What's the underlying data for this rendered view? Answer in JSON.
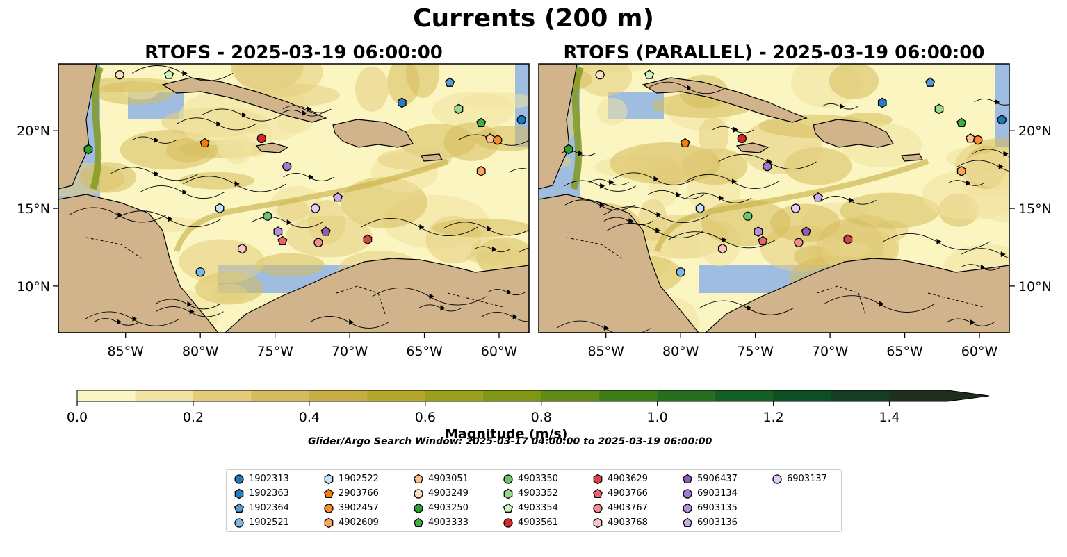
{
  "title": "Currents (200 m)",
  "colorbar": {
    "label": "Magnitude (m/s)",
    "ticks": [
      "0.0",
      "0.2",
      "0.4",
      "0.6",
      "0.8",
      "1.0",
      "1.2",
      "1.4"
    ],
    "levels": [
      0.0,
      0.1,
      0.2,
      0.3,
      0.4,
      0.5,
      0.6,
      0.7,
      0.8,
      0.9,
      1.0,
      1.1,
      1.2,
      1.3,
      1.4,
      1.5
    ],
    "colors": [
      "#fbf5c1",
      "#f0e2a0",
      "#e3cd7d",
      "#d5bb5c",
      "#c7ad43",
      "#b3a72e",
      "#9aa01e",
      "#7f9715",
      "#5f8b16",
      "#3f7d19",
      "#25701e",
      "#135f24",
      "#0c4f22",
      "#163e22",
      "#1e2f1c"
    ],
    "extend": "max"
  },
  "search_window": "Glider/Argo Search Window: 2025-03-17 04:00:00 to 2025-03-19 06:00:00",
  "chart_data": [
    {
      "type": "map",
      "title": "RTOFS - 2025-03-19 06:00:00",
      "xlim": [
        -89.5,
        -58
      ],
      "ylim": [
        7,
        24.3
      ],
      "xticks": [
        {
          "value": -85,
          "label": "85°W"
        },
        {
          "value": -80,
          "label": "80°W"
        },
        {
          "value": -75,
          "label": "75°W"
        },
        {
          "value": -70,
          "label": "70°W"
        },
        {
          "value": -65,
          "label": "65°W"
        },
        {
          "value": -60,
          "label": "60°W"
        }
      ],
      "yticks": [
        {
          "value": 10,
          "label": "10°N"
        },
        {
          "value": 15,
          "label": "15°N"
        },
        {
          "value": 20,
          "label": "20°N"
        }
      ],
      "ytick_side": "left",
      "floats": [
        {
          "id": "4903249",
          "lon": -85.4,
          "lat": 23.6
        },
        {
          "id": "4903354",
          "lon": -82.1,
          "lat": 23.6
        },
        {
          "id": "1902364",
          "lon": -63.3,
          "lat": 23.1
        },
        {
          "id": "1902363",
          "lon": -66.5,
          "lat": 21.8
        },
        {
          "id": "4903352",
          "lon": -62.7,
          "lat": 21.4
        },
        {
          "id": "4903333",
          "lon": -61.2,
          "lat": 20.5
        },
        {
          "id": "1902313",
          "lon": -58.5,
          "lat": 20.7
        },
        {
          "id": "4903250",
          "lon": -87.5,
          "lat": 18.8
        },
        {
          "id": "2903766",
          "lon": -79.7,
          "lat": 19.2
        },
        {
          "id": "4903561",
          "lon": -75.9,
          "lat": 19.5
        },
        {
          "id": "4903051",
          "lon": -60.6,
          "lat": 19.5
        },
        {
          "id": "3902457",
          "lon": -60.1,
          "lat": 19.4
        },
        {
          "id": "6903134",
          "lon": -74.2,
          "lat": 17.7
        },
        {
          "id": "4902609",
          "lon": -61.2,
          "lat": 17.4
        },
        {
          "id": "1902522",
          "lon": -78.7,
          "lat": 15.0
        },
        {
          "id": "6903137",
          "lon": -72.3,
          "lat": 15.0
        },
        {
          "id": "6903136",
          "lon": -70.8,
          "lat": 15.7
        },
        {
          "id": "4903350",
          "lon": -75.5,
          "lat": 14.5
        },
        {
          "id": "6903135",
          "lon": -74.8,
          "lat": 13.5
        },
        {
          "id": "5906437",
          "lon": -71.6,
          "lat": 13.5
        },
        {
          "id": "4903766",
          "lon": -74.5,
          "lat": 12.9
        },
        {
          "id": "4903767",
          "lon": -72.1,
          "lat": 12.8
        },
        {
          "id": "4903629",
          "lon": -68.8,
          "lat": 13.0
        },
        {
          "id": "4903768",
          "lon": -77.2,
          "lat": 12.4
        },
        {
          "id": "1902521",
          "lon": -80.0,
          "lat": 10.9
        }
      ]
    },
    {
      "type": "map",
      "title": "RTOFS (PARALLEL) - 2025-03-19 06:00:00",
      "xlim": [
        -89.5,
        -58
      ],
      "ylim": [
        7,
        24.3
      ],
      "xticks": [
        {
          "value": -85,
          "label": "85°W"
        },
        {
          "value": -80,
          "label": "80°W"
        },
        {
          "value": -75,
          "label": "75°W"
        },
        {
          "value": -70,
          "label": "70°W"
        },
        {
          "value": -65,
          "label": "65°W"
        },
        {
          "value": -60,
          "label": "60°W"
        }
      ],
      "yticks": [
        {
          "value": 10,
          "label": "10°N"
        },
        {
          "value": 15,
          "label": "15°N"
        },
        {
          "value": 20,
          "label": "20°N"
        }
      ],
      "ytick_side": "right",
      "floats": [
        {
          "id": "4903249",
          "lon": -85.4,
          "lat": 23.6
        },
        {
          "id": "4903354",
          "lon": -82.1,
          "lat": 23.6
        },
        {
          "id": "1902364",
          "lon": -63.3,
          "lat": 23.1
        },
        {
          "id": "1902363",
          "lon": -66.5,
          "lat": 21.8
        },
        {
          "id": "4903352",
          "lon": -62.7,
          "lat": 21.4
        },
        {
          "id": "4903333",
          "lon": -61.2,
          "lat": 20.5
        },
        {
          "id": "1902313",
          "lon": -58.5,
          "lat": 20.7
        },
        {
          "id": "4903250",
          "lon": -87.5,
          "lat": 18.8
        },
        {
          "id": "2903766",
          "lon": -79.7,
          "lat": 19.2
        },
        {
          "id": "4903561",
          "lon": -75.9,
          "lat": 19.5
        },
        {
          "id": "4903051",
          "lon": -60.6,
          "lat": 19.5
        },
        {
          "id": "3902457",
          "lon": -60.1,
          "lat": 19.4
        },
        {
          "id": "6903134",
          "lon": -74.2,
          "lat": 17.7
        },
        {
          "id": "4902609",
          "lon": -61.2,
          "lat": 17.4
        },
        {
          "id": "1902522",
          "lon": -78.7,
          "lat": 15.0
        },
        {
          "id": "6903137",
          "lon": -72.3,
          "lat": 15.0
        },
        {
          "id": "6903136",
          "lon": -70.8,
          "lat": 15.7
        },
        {
          "id": "4903350",
          "lon": -75.5,
          "lat": 14.5
        },
        {
          "id": "6903135",
          "lon": -74.8,
          "lat": 13.5
        },
        {
          "id": "5906437",
          "lon": -71.6,
          "lat": 13.5
        },
        {
          "id": "4903766",
          "lon": -74.5,
          "lat": 12.9
        },
        {
          "id": "4903767",
          "lon": -72.1,
          "lat": 12.8
        },
        {
          "id": "4903629",
          "lon": -68.8,
          "lat": 13.0
        },
        {
          "id": "4903768",
          "lon": -77.2,
          "lat": 12.4
        },
        {
          "id": "1902521",
          "lon": -80.0,
          "lat": 10.9
        }
      ]
    }
  ],
  "legend": [
    {
      "id": "1902313",
      "marker": "circle",
      "color": "#1f77b4"
    },
    {
      "id": "1902363",
      "marker": "hexagon",
      "color": "#2b7bba"
    },
    {
      "id": "1902364",
      "marker": "pentagon",
      "color": "#5b9bd5"
    },
    {
      "id": "1902521",
      "marker": "circle",
      "color": "#7fb8e6"
    },
    {
      "id": "1902522",
      "marker": "hexagon",
      "color": "#c6e2f7"
    },
    {
      "id": "2903766",
      "marker": "pentagon",
      "color": "#f57c0e"
    },
    {
      "id": "3902457",
      "marker": "circle",
      "color": "#fb8c2c"
    },
    {
      "id": "4902609",
      "marker": "hexagon",
      "color": "#fca55d"
    },
    {
      "id": "4903051",
      "marker": "pentagon",
      "color": "#fdc28f"
    },
    {
      "id": "4903249",
      "marker": "circle",
      "color": "#fdddbe"
    },
    {
      "id": "4903250",
      "marker": "hexagon",
      "color": "#2ca02c"
    },
    {
      "id": "4903333",
      "marker": "pentagon",
      "color": "#3cb043"
    },
    {
      "id": "4903350",
      "marker": "circle",
      "color": "#69c46c"
    },
    {
      "id": "4903352",
      "marker": "hexagon",
      "color": "#98d98e"
    },
    {
      "id": "4903354",
      "marker": "pentagon",
      "color": "#cdf5c4"
    },
    {
      "id": "4903561",
      "marker": "circle",
      "color": "#d62728"
    },
    {
      "id": "4903629",
      "marker": "hexagon",
      "color": "#d9404a"
    },
    {
      "id": "4903766",
      "marker": "pentagon",
      "color": "#e8636b"
    },
    {
      "id": "4903767",
      "marker": "circle",
      "color": "#f28e92"
    },
    {
      "id": "4903768",
      "marker": "hexagon",
      "color": "#fbc3c3"
    },
    {
      "id": "5906437",
      "marker": "pentagon",
      "color": "#8c5cb8"
    },
    {
      "id": "6903134",
      "marker": "circle",
      "color": "#a07ad0"
    },
    {
      "id": "6903135",
      "marker": "hexagon",
      "color": "#b591dc"
    },
    {
      "id": "6903136",
      "marker": "pentagon",
      "color": "#cba9ea"
    },
    {
      "id": "6903137",
      "marker": "circle",
      "color": "#e2cbf7"
    }
  ]
}
